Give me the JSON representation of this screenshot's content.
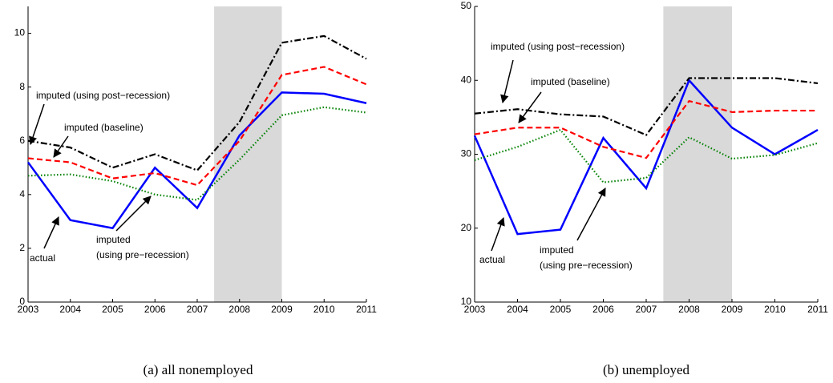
{
  "chart_data": [
    {
      "type": "line",
      "caption": "(a) all nonemployed",
      "x": [
        2003,
        2004,
        2005,
        2006,
        2007,
        2008,
        2009,
        2010,
        2011
      ],
      "xlim": [
        2003,
        2011
      ],
      "xticks": [
        2003,
        2004,
        2005,
        2006,
        2007,
        2008,
        2009,
        2010,
        2011
      ],
      "ylim": [
        0,
        11
      ],
      "yticks": [
        0,
        2,
        4,
        6,
        8,
        10
      ],
      "shade": [
        2007.4,
        2009
      ],
      "shade_color": "#d9d9d9",
      "series": [
        {
          "color": "#0000ff",
          "linestyle": "solid",
          "values": [
            5.2,
            3.05,
            2.75,
            5.0,
            3.5,
            6.2,
            7.8,
            7.75,
            7.4
          ]
        },
        {
          "color": "#ff0000",
          "linestyle": "dashed",
          "values": [
            5.35,
            5.2,
            4.6,
            4.8,
            4.35,
            6.0,
            8.45,
            8.75,
            8.1
          ]
        },
        {
          "color": "#000000",
          "linestyle": "dashdot",
          "values": [
            6.0,
            5.75,
            5.0,
            5.5,
            4.9,
            6.7,
            9.65,
            9.9,
            9.05
          ]
        },
        {
          "color": "#008000",
          "linestyle": "dotted",
          "values": [
            4.7,
            4.75,
            4.5,
            4.0,
            3.8,
            5.3,
            6.95,
            7.25,
            7.05
          ]
        }
      ],
      "annotations": [
        "imputed (using post−recession)",
        "imputed (baseline)",
        "actual",
        "imputed",
        "(using pre−recession)"
      ]
    },
    {
      "type": "line",
      "caption": "(b) unemployed",
      "x": [
        2003,
        2004,
        2005,
        2006,
        2007,
        2008,
        2009,
        2010,
        2011
      ],
      "xlim": [
        2003,
        2011
      ],
      "xticks": [
        2003,
        2004,
        2005,
        2006,
        2007,
        2008,
        2009,
        2010,
        2011
      ],
      "ylim": [
        10,
        50
      ],
      "yticks": [
        10,
        20,
        30,
        40,
        50
      ],
      "shade": [
        2007.4,
        2009
      ],
      "shade_color": "#d9d9d9",
      "series": [
        {
          "color": "#0000ff",
          "linestyle": "solid",
          "values": [
            32.5,
            19.2,
            19.8,
            32.2,
            25.4,
            40.0,
            33.6,
            30.0,
            33.3
          ]
        },
        {
          "color": "#ff0000",
          "linestyle": "dashed",
          "values": [
            32.7,
            33.6,
            33.6,
            31.0,
            29.5,
            37.2,
            35.7,
            35.9,
            35.9
          ]
        },
        {
          "color": "#000000",
          "linestyle": "dashdot",
          "values": [
            35.5,
            36.1,
            35.4,
            35.1,
            32.6,
            40.3,
            40.3,
            40.3,
            39.6
          ]
        },
        {
          "color": "#008000",
          "linestyle": "dotted",
          "values": [
            29.2,
            31.0,
            33.3,
            26.2,
            26.8,
            32.3,
            29.4,
            29.9,
            31.5
          ]
        }
      ],
      "annotations": [
        "imputed (using post−recession)",
        "imputed (baseline)",
        "actual",
        "imputed",
        "(using pre−recession)"
      ]
    }
  ]
}
